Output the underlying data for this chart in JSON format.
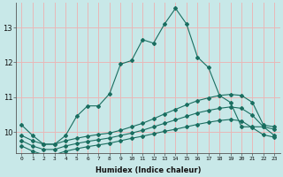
{
  "xlabel": "Humidex (Indice chaleur)",
  "bg_color": "#c8e8e8",
  "grid_color": "#e8b8b8",
  "line_color": "#1a6e60",
  "xlim": [
    -0.5,
    23.5
  ],
  "ylim": [
    9.4,
    13.7
  ],
  "yticks": [
    10,
    11,
    12,
    13
  ],
  "xticks": [
    0,
    1,
    2,
    3,
    4,
    5,
    6,
    7,
    8,
    9,
    10,
    11,
    12,
    13,
    14,
    15,
    16,
    17,
    18,
    19,
    20,
    21,
    22,
    23
  ],
  "line1_y": [
    10.2,
    9.9,
    9.65,
    9.65,
    9.9,
    10.45,
    10.75,
    10.75,
    11.1,
    11.95,
    12.05,
    12.65,
    12.55,
    13.1,
    13.55,
    13.1,
    12.15,
    11.85,
    11.05,
    10.85,
    10.15,
    10.15,
    10.15,
    9.9
  ],
  "line2_y": [
    9.9,
    9.75,
    9.65,
    9.65,
    9.75,
    9.82,
    9.88,
    9.93,
    9.97,
    10.05,
    10.15,
    10.25,
    10.38,
    10.52,
    10.65,
    10.78,
    10.9,
    10.98,
    11.05,
    11.08,
    11.05,
    10.85,
    10.2,
    10.15
  ],
  "line3_y": [
    9.75,
    9.6,
    9.5,
    9.5,
    9.6,
    9.67,
    9.73,
    9.78,
    9.83,
    9.9,
    9.97,
    10.05,
    10.15,
    10.25,
    10.35,
    10.45,
    10.55,
    10.62,
    10.68,
    10.72,
    10.68,
    10.48,
    10.15,
    10.08
  ],
  "line4_y": [
    9.6,
    9.45,
    9.35,
    9.35,
    9.45,
    9.52,
    9.58,
    9.63,
    9.68,
    9.75,
    9.82,
    9.88,
    9.95,
    10.02,
    10.08,
    10.15,
    10.22,
    10.28,
    10.33,
    10.36,
    10.32,
    10.12,
    9.92,
    9.85
  ]
}
